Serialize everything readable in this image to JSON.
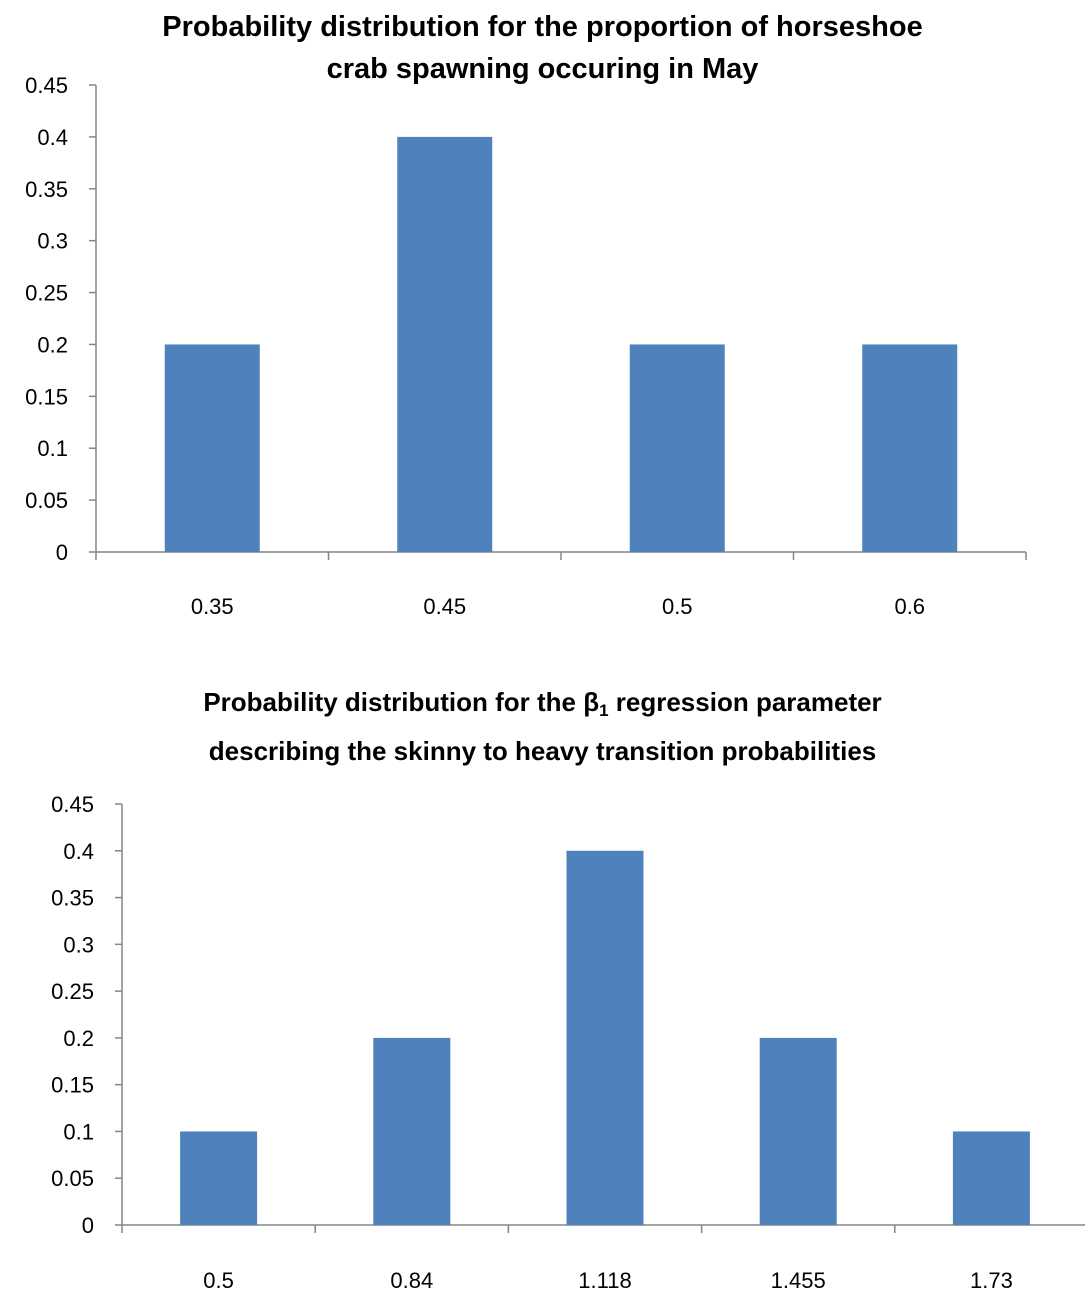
{
  "chart_data": [
    {
      "type": "bar",
      "title": "Probability distribution for the proportion of horseshoe crab spawning occuring in May",
      "title_line1": "Probability distribution for the proportion of horseshoe",
      "title_line2": "crab spawning occuring in May",
      "categories": [
        "0.35",
        "0.45",
        "0.5",
        "0.6"
      ],
      "values": [
        0.2,
        0.4,
        0.2,
        0.2
      ],
      "ylim": [
        0,
        0.45
      ],
      "yticks": [
        "0",
        "0.05",
        "0.1",
        "0.15",
        "0.2",
        "0.25",
        "0.3",
        "0.35",
        "0.4",
        "0.45"
      ],
      "grid": false,
      "legend": "none",
      "bar_color": "#4F81BD"
    },
    {
      "type": "bar",
      "title": "Probability distribution for the β1 regression parameter describing the skinny to heavy transition probabilities",
      "title_line1_pre": "Probability distribution for the β",
      "title_line1_sub": "1",
      "title_line1_post": " regression parameter",
      "title_line2": "describing the skinny to heavy transition probabilities",
      "categories": [
        "0.5",
        "0.84",
        "1.118",
        "1.455",
        "1.73"
      ],
      "values": [
        0.1,
        0.2,
        0.4,
        0.2,
        0.1
      ],
      "ylim": [
        0,
        0.45
      ],
      "yticks": [
        "0",
        "0.05",
        "0.1",
        "0.15",
        "0.2",
        "0.25",
        "0.3",
        "0.35",
        "0.4",
        "0.45"
      ],
      "grid": false,
      "legend": "none",
      "bar_color": "#4F81BD"
    }
  ]
}
